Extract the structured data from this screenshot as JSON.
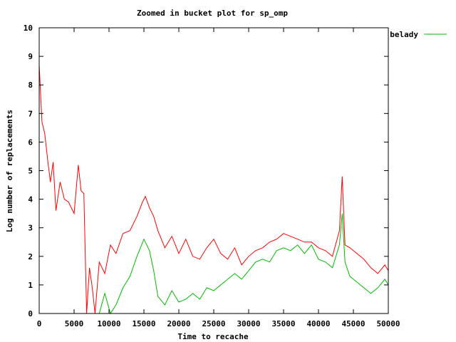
{
  "chart_data": {
    "type": "line",
    "title": "Zoomed in bucket plot for sp_omp",
    "xlabel": "Time to recache",
    "ylabel": "Log number of replacements",
    "xlim": [
      0,
      50000
    ],
    "ylim": [
      0,
      10
    ],
    "x_ticks": [
      "0",
      "5000",
      "10000",
      "15000",
      "20000",
      "25000",
      "30000",
      "35000",
      "40000",
      "45000",
      "50000"
    ],
    "y_ticks": [
      "0",
      "1",
      "2",
      "3",
      "4",
      "5",
      "6",
      "7",
      "8",
      "9",
      "10"
    ],
    "grid": false,
    "legend_position": "top-right outside",
    "series": [
      {
        "name": "",
        "color": "#ff0000",
        "points": [
          [
            0,
            8.7
          ],
          [
            400,
            6.7
          ],
          [
            800,
            6.3
          ],
          [
            1200,
            5.4
          ],
          [
            1600,
            4.6
          ],
          [
            2000,
            5.3
          ],
          [
            2400,
            3.6
          ],
          [
            3000,
            4.6
          ],
          [
            3600,
            4.0
          ],
          [
            4200,
            3.9
          ],
          [
            5000,
            3.5
          ],
          [
            5600,
            5.2
          ],
          [
            6000,
            4.3
          ],
          [
            6400,
            4.2
          ],
          [
            6800,
            0
          ],
          [
            7200,
            1.6
          ],
          [
            7600,
            0.9
          ],
          [
            8000,
            0
          ],
          [
            8600,
            1.8
          ],
          [
            9400,
            1.4
          ],
          [
            10200,
            2.4
          ],
          [
            11000,
            2.1
          ],
          [
            12000,
            2.8
          ],
          [
            13000,
            2.9
          ],
          [
            14000,
            3.4
          ],
          [
            14800,
            3.9
          ],
          [
            15200,
            4.1
          ],
          [
            15800,
            3.7
          ],
          [
            16400,
            3.4
          ],
          [
            17000,
            2.9
          ],
          [
            18000,
            2.3
          ],
          [
            19000,
            2.7
          ],
          [
            20000,
            2.1
          ],
          [
            21000,
            2.6
          ],
          [
            22000,
            2.0
          ],
          [
            23000,
            1.9
          ],
          [
            24000,
            2.3
          ],
          [
            25000,
            2.6
          ],
          [
            26000,
            2.1
          ],
          [
            27000,
            1.9
          ],
          [
            28000,
            2.3
          ],
          [
            29000,
            1.7
          ],
          [
            30000,
            2.0
          ],
          [
            31000,
            2.2
          ],
          [
            32000,
            2.3
          ],
          [
            33000,
            2.5
          ],
          [
            34000,
            2.6
          ],
          [
            35000,
            2.8
          ],
          [
            36000,
            2.7
          ],
          [
            37000,
            2.6
          ],
          [
            38000,
            2.5
          ],
          [
            39000,
            2.5
          ],
          [
            40000,
            2.3
          ],
          [
            41000,
            2.2
          ],
          [
            42000,
            2.0
          ],
          [
            43000,
            2.9
          ],
          [
            43400,
            4.8
          ],
          [
            43800,
            2.4
          ],
          [
            44500,
            2.3
          ],
          [
            45500,
            2.1
          ],
          [
            46500,
            1.9
          ],
          [
            47500,
            1.6
          ],
          [
            48500,
            1.4
          ],
          [
            49500,
            1.7
          ],
          [
            50000,
            1.5
          ]
        ]
      },
      {
        "name": "belady",
        "color": "#00bb00",
        "points": [
          [
            8600,
            0
          ],
          [
            9400,
            0.7
          ],
          [
            10200,
            0
          ],
          [
            11000,
            0.3
          ],
          [
            12000,
            0.9
          ],
          [
            13000,
            1.3
          ],
          [
            14000,
            2.0
          ],
          [
            15000,
            2.6
          ],
          [
            15800,
            2.2
          ],
          [
            16400,
            1.5
          ],
          [
            17000,
            0.6
          ],
          [
            18000,
            0.3
          ],
          [
            19000,
            0.8
          ],
          [
            20000,
            0.4
          ],
          [
            21000,
            0.5
          ],
          [
            22000,
            0.7
          ],
          [
            23000,
            0.5
          ],
          [
            24000,
            0.9
          ],
          [
            25000,
            0.8
          ],
          [
            26000,
            1.0
          ],
          [
            27000,
            1.2
          ],
          [
            28000,
            1.4
          ],
          [
            29000,
            1.2
          ],
          [
            30000,
            1.5
          ],
          [
            31000,
            1.8
          ],
          [
            32000,
            1.9
          ],
          [
            33000,
            1.8
          ],
          [
            34000,
            2.2
          ],
          [
            35000,
            2.3
          ],
          [
            36000,
            2.2
          ],
          [
            37000,
            2.4
          ],
          [
            38000,
            2.1
          ],
          [
            39000,
            2.4
          ],
          [
            40000,
            1.9
          ],
          [
            41000,
            1.8
          ],
          [
            42000,
            1.6
          ],
          [
            43000,
            2.4
          ],
          [
            43400,
            3.5
          ],
          [
            43800,
            1.8
          ],
          [
            44500,
            1.3
          ],
          [
            45500,
            1.1
          ],
          [
            46500,
            0.9
          ],
          [
            47500,
            0.7
          ],
          [
            48500,
            0.9
          ],
          [
            49500,
            1.2
          ],
          [
            50000,
            1.0
          ]
        ]
      }
    ]
  }
}
